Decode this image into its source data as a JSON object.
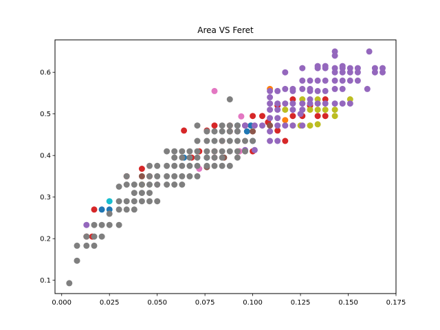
{
  "chart_data": {
    "type": "scatter",
    "title": "Area VS Feret",
    "xlabel": "",
    "ylabel": "",
    "xlim": [
      -0.0035,
      0.175
    ],
    "ylim": [
      0.068,
      0.678
    ],
    "xticks": [
      0.0,
      0.025,
      0.05,
      0.075,
      0.1,
      0.125,
      0.15,
      0.175
    ],
    "xtick_labels": [
      "0.000",
      "0.025",
      "0.050",
      "0.075",
      "0.100",
      "0.125",
      "0.150",
      "0.175"
    ],
    "yticks": [
      0.1,
      0.2,
      0.3,
      0.4,
      0.5,
      0.6
    ],
    "ytick_labels": [
      "0.1",
      "0.2",
      "0.3",
      "0.4",
      "0.5",
      "0.6"
    ],
    "grid": false,
    "series": [
      {
        "color": "#1f77b4",
        "points": [
          [
            0.021,
            0.27
          ],
          [
            0.025,
            0.27
          ],
          [
            0.064,
            0.395
          ],
          [
            0.076,
            0.395
          ],
          [
            0.092,
            0.472
          ],
          [
            0.097,
            0.458
          ],
          [
            0.099,
            0.472
          ],
          [
            0.1,
            0.435
          ]
        ]
      },
      {
        "color": "#ff7f0e",
        "points": [
          [
            0.109,
            0.56
          ],
          [
            0.117,
            0.485
          ]
        ]
      },
      {
        "color": "#d62728",
        "points": [
          [
            0.017,
            0.27
          ],
          [
            0.013,
            0.205
          ],
          [
            0.016,
            0.205
          ],
          [
            0.034,
            0.35
          ],
          [
            0.042,
            0.368
          ],
          [
            0.046,
            0.35
          ],
          [
            0.064,
            0.46
          ],
          [
            0.072,
            0.41
          ],
          [
            0.076,
            0.46
          ],
          [
            0.08,
            0.472
          ],
          [
            0.084,
            0.435
          ],
          [
            0.088,
            0.472
          ],
          [
            0.093,
            0.41
          ],
          [
            0.096,
            0.472
          ],
          [
            0.1,
            0.495
          ],
          [
            0.1,
            0.41
          ],
          [
            0.105,
            0.495
          ],
          [
            0.108,
            0.48
          ],
          [
            0.113,
            0.46
          ],
          [
            0.113,
            0.52
          ],
          [
            0.117,
            0.435
          ],
          [
            0.121,
            0.495
          ],
          [
            0.121,
            0.535
          ],
          [
            0.126,
            0.495
          ],
          [
            0.13,
            0.52
          ],
          [
            0.134,
            0.495
          ],
          [
            0.138,
            0.535
          ],
          [
            0.138,
            0.495
          ],
          [
            0.068,
            0.395
          ],
          [
            0.08,
            0.41
          ],
          [
            0.088,
            0.458
          ]
        ]
      },
      {
        "color": "#8c564b",
        "points": [
          [
            0.042,
            0.35
          ],
          [
            0.076,
            0.372
          ],
          [
            0.085,
            0.395
          ],
          [
            0.1,
            0.458
          ],
          [
            0.109,
            0.472
          ]
        ]
      },
      {
        "color": "#e377c2",
        "points": [
          [
            0.08,
            0.555
          ],
          [
            0.072,
            0.368
          ],
          [
            0.094,
            0.494
          ],
          [
            0.05,
            0.33
          ],
          [
            0.042,
            0.33
          ],
          [
            0.08,
            0.395
          ],
          [
            0.093,
            0.41
          ]
        ]
      },
      {
        "color": "#bcbd22",
        "points": [
          [
            0.042,
            0.33
          ],
          [
            0.121,
            0.472
          ],
          [
            0.125,
            0.472
          ],
          [
            0.13,
            0.472
          ],
          [
            0.13,
            0.51
          ],
          [
            0.134,
            0.51
          ],
          [
            0.138,
            0.51
          ],
          [
            0.134,
            0.475
          ],
          [
            0.143,
            0.495
          ],
          [
            0.143,
            0.51
          ],
          [
            0.126,
            0.535
          ],
          [
            0.134,
            0.535
          ],
          [
            0.151,
            0.535
          ],
          [
            0.117,
            0.51
          ]
        ]
      },
      {
        "color": "#17becf",
        "points": [
          [
            0.025,
            0.29
          ]
        ]
      },
      {
        "color": "#9467bd",
        "points": [
          [
            0.013,
            0.233
          ],
          [
            0.092,
            0.458
          ],
          [
            0.096,
            0.472
          ],
          [
            0.096,
            0.413
          ],
          [
            0.101,
            0.472
          ],
          [
            0.101,
            0.413
          ],
          [
            0.105,
            0.472
          ],
          [
            0.109,
            0.435
          ],
          [
            0.113,
            0.435
          ],
          [
            0.109,
            0.458
          ],
          [
            0.113,
            0.472
          ],
          [
            0.109,
            0.49
          ],
          [
            0.113,
            0.49
          ],
          [
            0.109,
            0.51
          ],
          [
            0.113,
            0.51
          ],
          [
            0.109,
            0.525
          ],
          [
            0.113,
            0.525
          ],
          [
            0.109,
            0.54
          ],
          [
            0.113,
            0.555
          ],
          [
            0.109,
            0.555
          ],
          [
            0.117,
            0.56
          ],
          [
            0.117,
            0.6
          ],
          [
            0.117,
            0.472
          ],
          [
            0.117,
            0.525
          ],
          [
            0.121,
            0.472
          ],
          [
            0.121,
            0.51
          ],
          [
            0.121,
            0.525
          ],
          [
            0.121,
            0.555
          ],
          [
            0.121,
            0.56
          ],
          [
            0.126,
            0.472
          ],
          [
            0.126,
            0.51
          ],
          [
            0.126,
            0.525
          ],
          [
            0.126,
            0.56
          ],
          [
            0.126,
            0.58
          ],
          [
            0.126,
            0.61
          ],
          [
            0.13,
            0.525
          ],
          [
            0.13,
            0.56
          ],
          [
            0.13,
            0.58
          ],
          [
            0.13,
            0.555
          ],
          [
            0.134,
            0.525
          ],
          [
            0.134,
            0.555
          ],
          [
            0.134,
            0.58
          ],
          [
            0.134,
            0.61
          ],
          [
            0.138,
            0.525
          ],
          [
            0.138,
            0.555
          ],
          [
            0.138,
            0.58
          ],
          [
            0.138,
            0.61
          ],
          [
            0.143,
            0.525
          ],
          [
            0.143,
            0.56
          ],
          [
            0.143,
            0.58
          ],
          [
            0.143,
            0.6
          ],
          [
            0.143,
            0.61
          ],
          [
            0.143,
            0.64
          ],
          [
            0.143,
            0.65
          ],
          [
            0.147,
            0.525
          ],
          [
            0.147,
            0.56
          ],
          [
            0.147,
            0.58
          ],
          [
            0.147,
            0.6
          ],
          [
            0.147,
            0.61
          ],
          [
            0.151,
            0.525
          ],
          [
            0.151,
            0.58
          ],
          [
            0.151,
            0.6
          ],
          [
            0.151,
            0.61
          ],
          [
            0.155,
            0.58
          ],
          [
            0.155,
            0.6
          ],
          [
            0.155,
            0.61
          ],
          [
            0.16,
            0.56
          ],
          [
            0.161,
            0.65
          ],
          [
            0.164,
            0.6
          ],
          [
            0.164,
            0.61
          ],
          [
            0.168,
            0.6
          ],
          [
            0.168,
            0.61
          ],
          [
            0.134,
            0.615
          ],
          [
            0.138,
            0.615
          ],
          [
            0.147,
            0.615
          ],
          [
            0.13,
            0.535
          ],
          [
            0.125,
            0.5
          ]
        ]
      },
      {
        "color": "#7f7f7f",
        "points": [
          [
            0.004,
            0.093
          ],
          [
            0.008,
            0.147
          ],
          [
            0.008,
            0.183
          ],
          [
            0.013,
            0.183
          ],
          [
            0.017,
            0.183
          ],
          [
            0.013,
            0.205
          ],
          [
            0.017,
            0.205
          ],
          [
            0.021,
            0.205
          ],
          [
            0.017,
            0.233
          ],
          [
            0.021,
            0.233
          ],
          [
            0.025,
            0.233
          ],
          [
            0.03,
            0.233
          ],
          [
            0.03,
            0.27
          ],
          [
            0.03,
            0.29
          ],
          [
            0.034,
            0.29
          ],
          [
            0.038,
            0.29
          ],
          [
            0.042,
            0.29
          ],
          [
            0.046,
            0.29
          ],
          [
            0.05,
            0.29
          ],
          [
            0.03,
            0.325
          ],
          [
            0.034,
            0.33
          ],
          [
            0.038,
            0.33
          ],
          [
            0.042,
            0.33
          ],
          [
            0.046,
            0.33
          ],
          [
            0.05,
            0.33
          ],
          [
            0.055,
            0.33
          ],
          [
            0.059,
            0.33
          ],
          [
            0.034,
            0.27
          ],
          [
            0.038,
            0.27
          ],
          [
            0.038,
            0.31
          ],
          [
            0.042,
            0.31
          ],
          [
            0.046,
            0.31
          ],
          [
            0.05,
            0.35
          ],
          [
            0.055,
            0.35
          ],
          [
            0.059,
            0.35
          ],
          [
            0.063,
            0.35
          ],
          [
            0.067,
            0.35
          ],
          [
            0.071,
            0.35
          ],
          [
            0.046,
            0.375
          ],
          [
            0.05,
            0.375
          ],
          [
            0.055,
            0.375
          ],
          [
            0.059,
            0.375
          ],
          [
            0.063,
            0.375
          ],
          [
            0.067,
            0.375
          ],
          [
            0.071,
            0.375
          ],
          [
            0.076,
            0.375
          ],
          [
            0.08,
            0.375
          ],
          [
            0.084,
            0.375
          ],
          [
            0.088,
            0.375
          ],
          [
            0.055,
            0.41
          ],
          [
            0.059,
            0.41
          ],
          [
            0.063,
            0.41
          ],
          [
            0.067,
            0.41
          ],
          [
            0.071,
            0.41
          ],
          [
            0.076,
            0.41
          ],
          [
            0.08,
            0.41
          ],
          [
            0.084,
            0.41
          ],
          [
            0.088,
            0.41
          ],
          [
            0.059,
            0.395
          ],
          [
            0.063,
            0.395
          ],
          [
            0.067,
            0.395
          ],
          [
            0.071,
            0.395
          ],
          [
            0.076,
            0.395
          ],
          [
            0.08,
            0.395
          ],
          [
            0.071,
            0.435
          ],
          [
            0.076,
            0.435
          ],
          [
            0.08,
            0.435
          ],
          [
            0.084,
            0.435
          ],
          [
            0.088,
            0.435
          ],
          [
            0.092,
            0.435
          ],
          [
            0.096,
            0.435
          ],
          [
            0.071,
            0.472
          ],
          [
            0.076,
            0.458
          ],
          [
            0.08,
            0.458
          ],
          [
            0.084,
            0.458
          ],
          [
            0.088,
            0.458
          ],
          [
            0.092,
            0.458
          ],
          [
            0.084,
            0.472
          ],
          [
            0.088,
            0.472
          ],
          [
            0.092,
            0.472
          ],
          [
            0.088,
            0.535
          ],
          [
            0.092,
            0.41
          ],
          [
            0.096,
            0.41
          ],
          [
            0.1,
            0.435
          ],
          [
            0.063,
            0.33
          ],
          [
            0.046,
            0.35
          ],
          [
            0.034,
            0.35
          ],
          [
            0.025,
            0.26
          ],
          [
            0.084,
            0.395
          ],
          [
            0.092,
            0.395
          ]
        ]
      }
    ]
  }
}
